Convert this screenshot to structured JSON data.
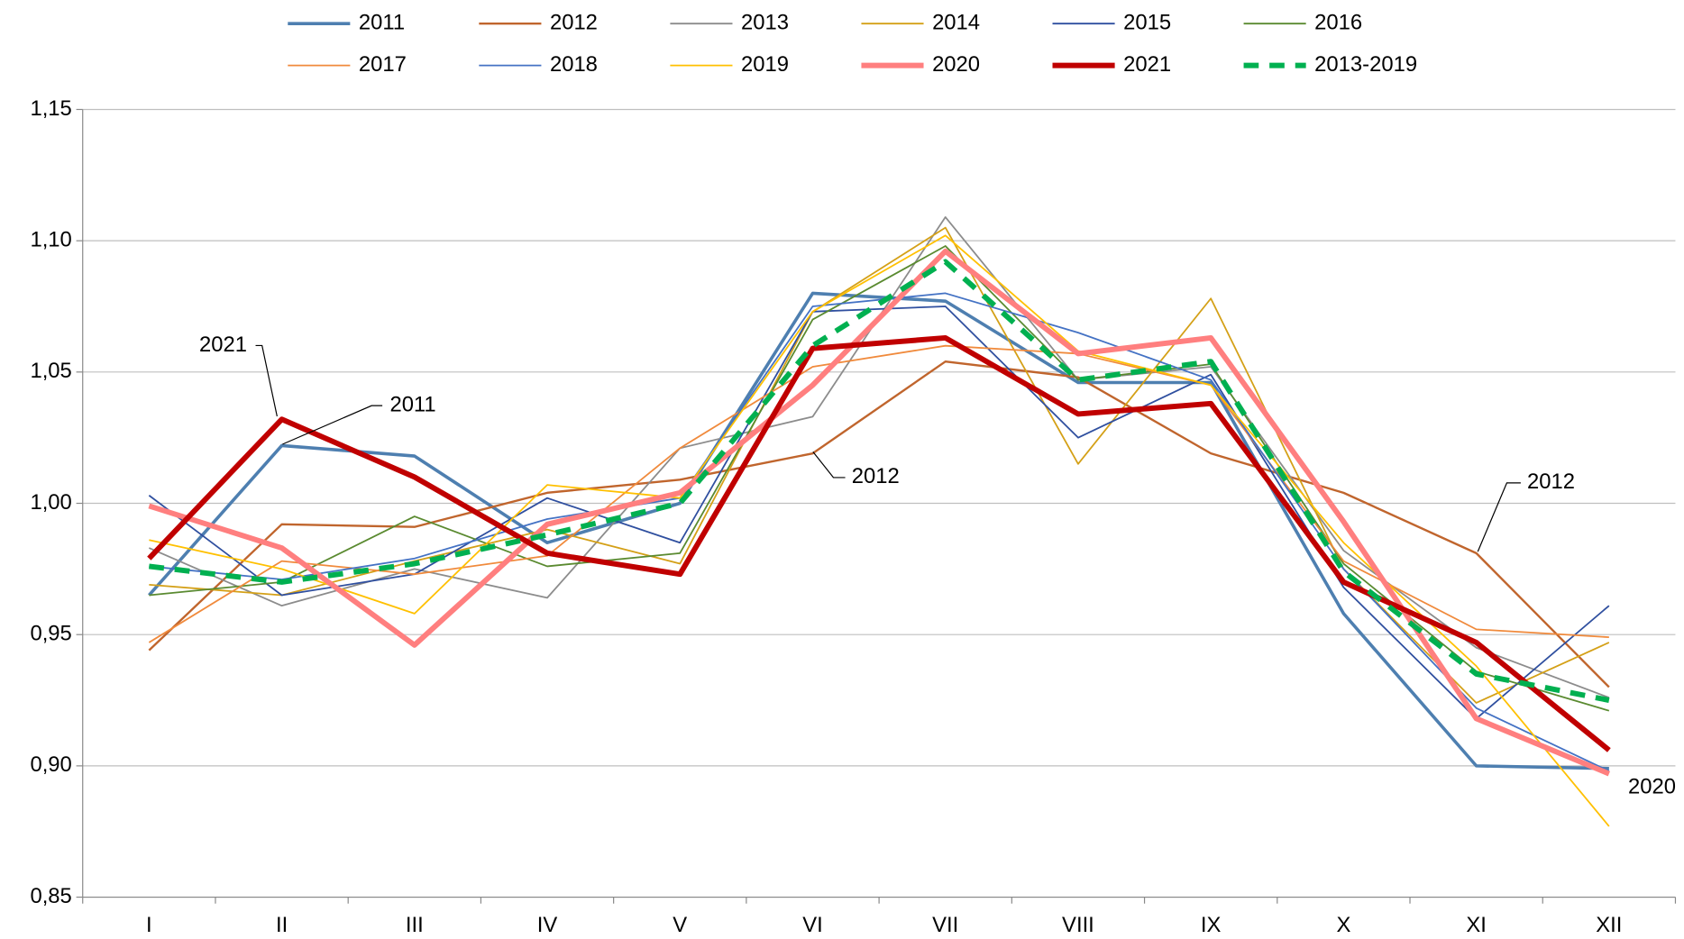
{
  "chart_data": {
    "type": "line",
    "categories": [
      "I",
      "II",
      "III",
      "IV",
      "V",
      "VI",
      "VII",
      "VIII",
      "IX",
      "X",
      "XI",
      "XII"
    ],
    "ylim": [
      0.85,
      1.15
    ],
    "yticks": [
      {
        "value": 0.85,
        "label": "0,85"
      },
      {
        "value": 0.9,
        "label": "0,90"
      },
      {
        "value": 0.95,
        "label": "0,95"
      },
      {
        "value": 1.0,
        "label": "1,00"
      },
      {
        "value": 1.05,
        "label": "1,05"
      },
      {
        "value": 1.1,
        "label": "1,10"
      },
      {
        "value": 1.15,
        "label": "1,15"
      }
    ],
    "grid": true,
    "legend": "top",
    "series": [
      {
        "name": "2011",
        "color": "#4e7fb0",
        "width": 3,
        "values": [
          0.965,
          1.022,
          1.018,
          0.985,
          1.0,
          1.08,
          1.077,
          1.046,
          1.046,
          0.958,
          0.9,
          0.899
        ]
      },
      {
        "name": "2012",
        "color": "#c0652d",
        "width": 2,
        "values": [
          0.944,
          0.992,
          0.991,
          1.004,
          1.009,
          1.019,
          1.054,
          1.048,
          1.019,
          1.004,
          0.981,
          0.93
        ]
      },
      {
        "name": "2013",
        "color": "#8c8c8c",
        "width": 1.5,
        "values": [
          0.983,
          0.961,
          0.975,
          0.964,
          1.021,
          1.033,
          1.109,
          1.047,
          1.052,
          0.982,
          0.945,
          0.926
        ]
      },
      {
        "name": "2014",
        "color": "#d4a017",
        "width": 1.5,
        "values": [
          0.969,
          0.965,
          0.978,
          0.99,
          0.977,
          1.073,
          1.105,
          1.015,
          1.078,
          0.975,
          0.924,
          0.947
        ]
      },
      {
        "name": "2015",
        "color": "#2f4f9f",
        "width": 1.5,
        "values": [
          1.003,
          0.965,
          0.973,
          1.002,
          0.985,
          1.073,
          1.075,
          1.025,
          1.049,
          0.968,
          0.918,
          0.961
        ]
      },
      {
        "name": "2016",
        "color": "#5a8a30",
        "width": 1.5,
        "values": [
          0.965,
          0.97,
          0.995,
          0.976,
          0.981,
          1.07,
          1.098,
          1.047,
          1.053,
          0.977,
          0.936,
          0.921
        ]
      },
      {
        "name": "2017",
        "color": "#f08a3c",
        "width": 1.5,
        "values": [
          0.947,
          0.978,
          0.973,
          0.98,
          1.021,
          1.052,
          1.06,
          1.057,
          1.045,
          0.978,
          0.952,
          0.949
        ]
      },
      {
        "name": "2018",
        "color": "#4472c4",
        "width": 1.5,
        "values": [
          0.976,
          0.971,
          0.979,
          0.994,
          1.002,
          1.075,
          1.08,
          1.065,
          1.047,
          0.975,
          0.922,
          0.898
        ]
      },
      {
        "name": "2019",
        "color": "#ffc000",
        "width": 1.5,
        "values": [
          0.986,
          0.975,
          0.958,
          1.007,
          1.002,
          1.073,
          1.102,
          1.058,
          1.045,
          0.985,
          0.938,
          0.877
        ]
      },
      {
        "name": "2020",
        "color": "#ff7f7f",
        "width": 5,
        "values": [
          0.999,
          0.983,
          0.946,
          0.992,
          1.004,
          1.045,
          1.096,
          1.057,
          1.063,
          0.993,
          0.918,
          0.897
        ]
      },
      {
        "name": "2021",
        "color": "#c00000",
        "width": 5,
        "values": [
          0.979,
          1.032,
          1.01,
          0.981,
          0.973,
          1.059,
          1.063,
          1.034,
          1.038,
          0.97,
          0.947,
          0.906
        ]
      },
      {
        "name": "2013-2019",
        "color": "#00b050",
        "width": 5,
        "dash": "14 10",
        "values": [
          0.976,
          0.97,
          0.977,
          0.988,
          1.0,
          1.06,
          1.092,
          1.047,
          1.054,
          0.974,
          0.935,
          0.925
        ]
      }
    ],
    "annotations": [
      {
        "text": "2021",
        "color": "#c00000"
      },
      {
        "text": "2011",
        "color": "#2e75b6"
      },
      {
        "text": "2012",
        "color": "#c0652d"
      },
      {
        "text": "2012",
        "color": "#c0652d"
      },
      {
        "text": "2020",
        "color": "#ff7f7f"
      }
    ]
  }
}
